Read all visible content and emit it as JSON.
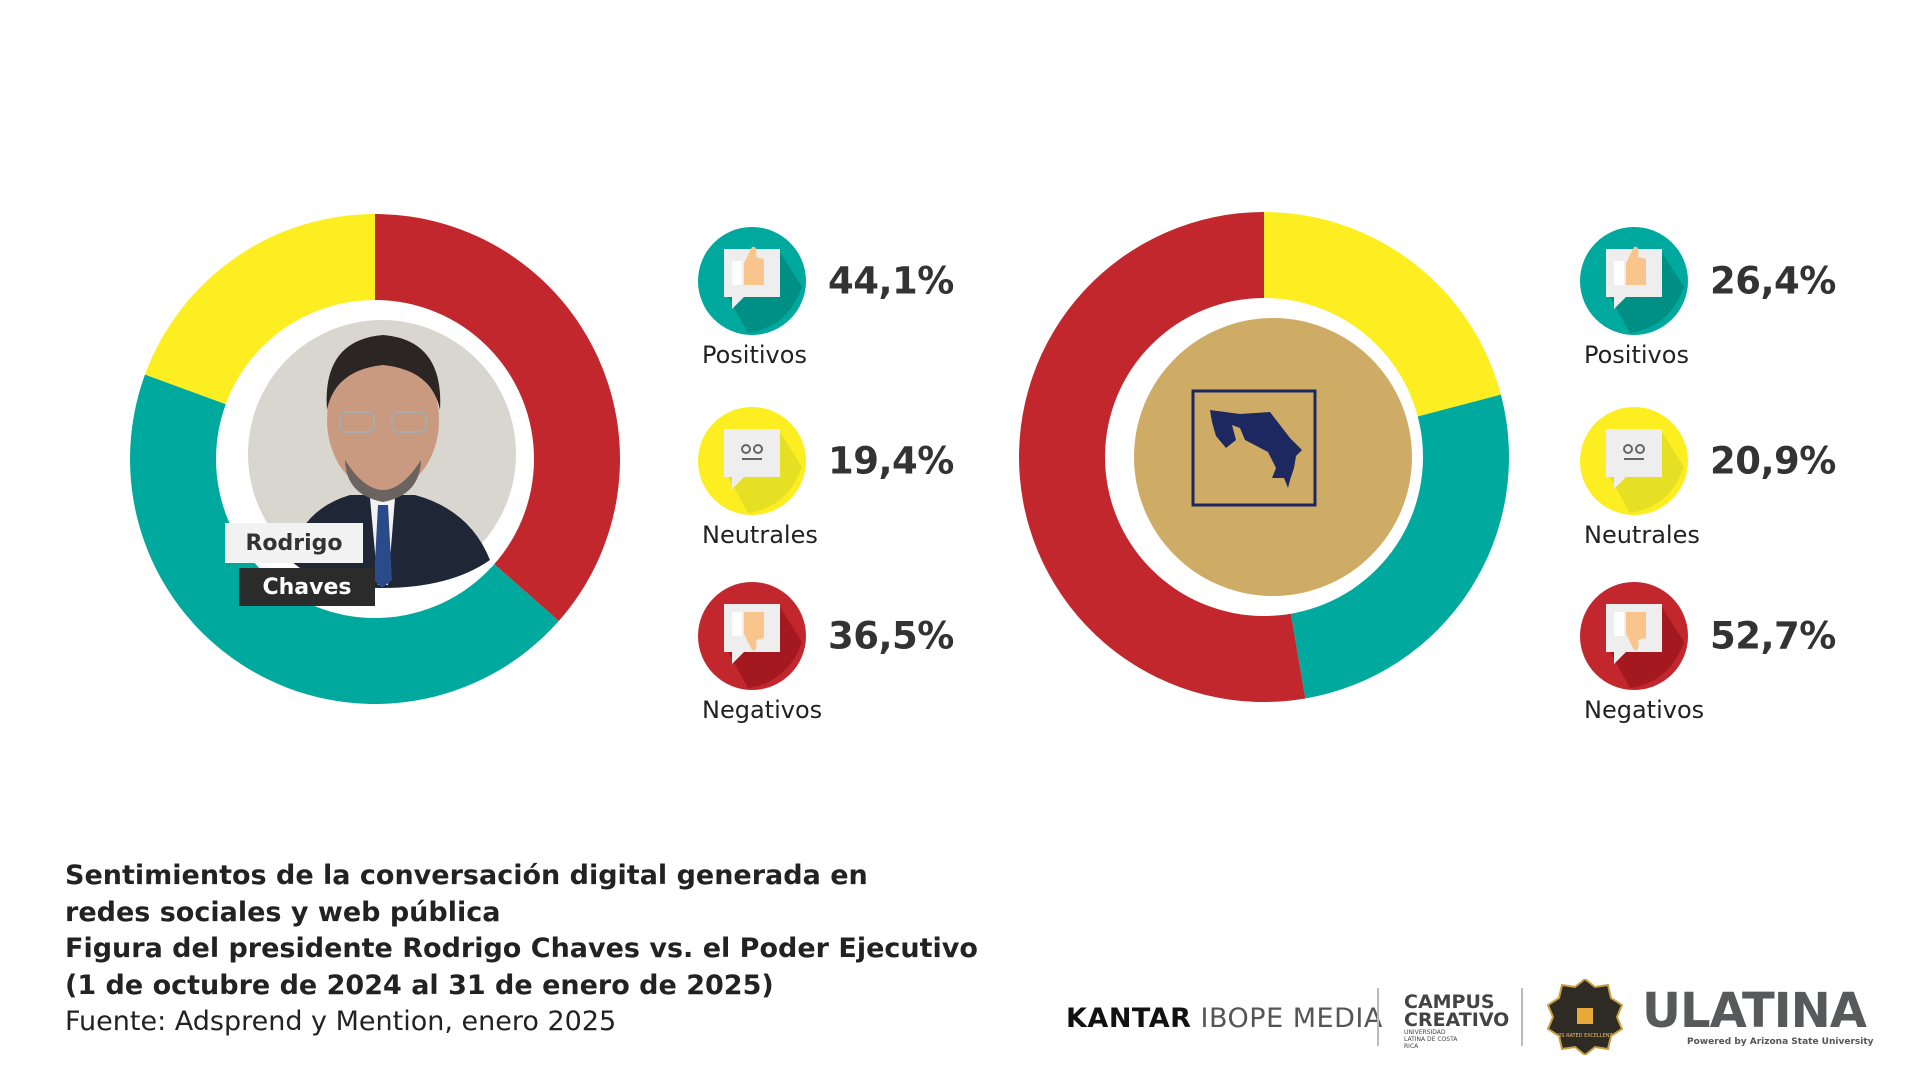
{
  "colors": {
    "positive": "#00A99D",
    "neutral": "#FCEE21",
    "negative": "#C1272D",
    "gold": "#CFAC66",
    "navy": "#1E2860"
  },
  "chart_data": [
    {
      "type": "pie",
      "variant": "donut",
      "center_label": [
        "Rodrigo",
        "Chaves"
      ],
      "categories": [
        "Negativos",
        "Positivos",
        "Neutrales"
      ],
      "values": [
        36.5,
        44.1,
        19.4
      ],
      "labels": {
        "Positivos": "44,1%",
        "Neutrales": "19,4%",
        "Negativos": "36,5%"
      }
    },
    {
      "type": "pie",
      "variant": "donut",
      "center_label": [],
      "categories": [
        "Neutrales",
        "Positivos",
        "Negativos"
      ],
      "values": [
        20.9,
        26.4,
        52.7
      ],
      "labels": {
        "Positivos": "26,4%",
        "Neutrales": "20,9%",
        "Negativos": "52,7%"
      }
    }
  ],
  "legend_left": [
    {
      "label": "Positivos",
      "value": "44,1%",
      "icon": "thumbs-up-icon"
    },
    {
      "label": "Neutrales",
      "value": "19,4%",
      "icon": "neutral-face-icon"
    },
    {
      "label": "Negativos",
      "value": "36,5%",
      "icon": "thumbs-down-icon"
    }
  ],
  "legend_right": [
    {
      "label": "Positivos",
      "value": "26,4%",
      "icon": "thumbs-up-icon"
    },
    {
      "label": "Neutrales",
      "value": "20,9%",
      "icon": "neutral-face-icon"
    },
    {
      "label": "Negativos",
      "value": "52,7%",
      "icon": "thumbs-down-icon"
    }
  ],
  "name_tag": {
    "first": "Rodrigo",
    "last": "Chaves"
  },
  "caption": {
    "line1": "Sentimientos de la conversación digital generada en",
    "line2": "redes sociales y web pública",
    "line3": "Figura del presidente Rodrigo Chaves vs. el Poder Ejecutivo",
    "line4": "(1 de octubre de 2024 al 31 de enero de 2025)",
    "source": "Fuente: Adsprend y Mention, enero 2025"
  },
  "logos": {
    "kantar_bold": "KANTAR",
    "kantar_light": "IBOPE MEDIA",
    "campus_1": "CAMPUS",
    "campus_2": "CREATIVO",
    "campus_sub": "UNIVERSIDAD LATINA DE COSTA RICA",
    "qs_badge": "QS RATED EXCELLENT",
    "ulatina": "ULATINA",
    "ulatina_sub": "Powered by Arizona State University"
  }
}
